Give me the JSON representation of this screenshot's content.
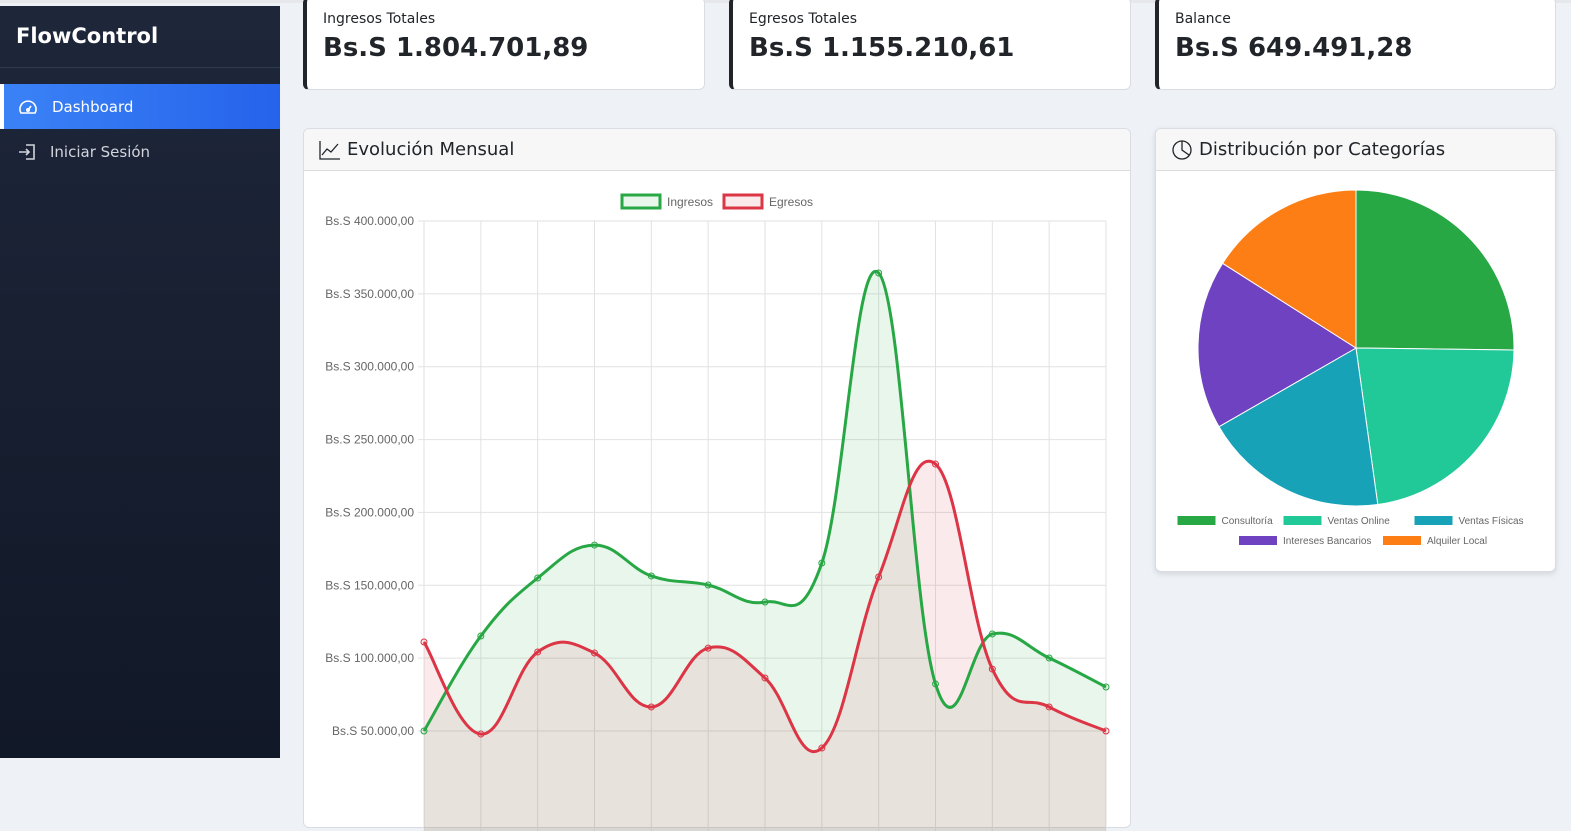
{
  "sidebar": {
    "brand": "FlowControl",
    "items": [
      {
        "label": "Dashboard",
        "icon": "speedometer-icon",
        "active": true
      },
      {
        "label": "Iniciar Sesión",
        "icon": "login-icon",
        "active": false
      }
    ]
  },
  "stats": [
    {
      "label": "Ingresos Totales",
      "value": "Bs.S 1.804.701,89"
    },
    {
      "label": "Egresos Totales",
      "value": "Bs.S 1.155.210,61"
    },
    {
      "label": "Balance",
      "value": "Bs.S 649.491,28"
    }
  ],
  "line_card": {
    "title": "Evolución Mensual",
    "icon": "line-chart-icon"
  },
  "pie_card": {
    "title": "Distribución por Categorías",
    "icon": "pie-chart-icon"
  },
  "chart_data": [
    {
      "type": "line",
      "yticks": [
        "Bs.S 400.000,00",
        "Bs.S 350.000,00",
        "Bs.S 300.000,00",
        "Bs.S 250.000,00",
        "Bs.S 200.000,00",
        "Bs.S 150.000,00",
        "Bs.S 100.000,00",
        "Bs.S 50.000,00"
      ],
      "ylim": [
        50000,
        400000
      ],
      "grid": true,
      "legend": "top",
      "series": [
        {
          "name": "Ingresos",
          "color": "#28a745",
          "fill": "rgba(40,167,69,0.1)",
          "values": [
            50000,
            115200,
            155000,
            177600,
            156400,
            150200,
            138500,
            165300,
            364300,
            82300,
            116600,
            100100,
            80200
          ]
        },
        {
          "name": "Egresos",
          "color": "#dc3545",
          "fill": "rgba(220,53,69,0.1)",
          "values": [
            111100,
            47900,
            104200,
            103500,
            66500,
            106900,
            86400,
            38300,
            155700,
            233200,
            92500,
            66500,
            50000
          ]
        }
      ]
    },
    {
      "type": "pie",
      "legend": "bottom",
      "labels": [
        "Consultoría",
        "Ventas Online",
        "Ventas Físicas",
        "Intereses Bancarios",
        "Alquiler Local"
      ],
      "values": [
        25.2,
        22.6,
        18.9,
        17.3,
        16.0
      ],
      "colors": [
        "#28a745",
        "#20c997",
        "#17a2b8",
        "#6f42c1",
        "#fd7e14"
      ]
    }
  ]
}
